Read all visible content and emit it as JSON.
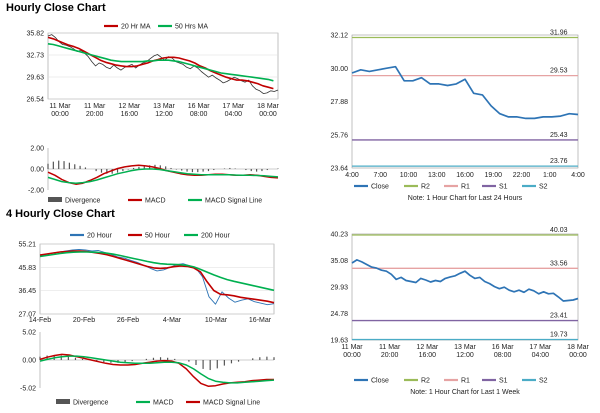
{
  "sections": {
    "hourly_title": "Hourly Close Chart",
    "four_hourly_title": "4 Hourly Close Chart"
  },
  "colors": {
    "close": "#2e74b5",
    "ma_short": "#c00000",
    "ma_mid": "#00b050",
    "ma_long": "#00b050",
    "divergence": "#555555",
    "macd": "#c00000",
    "signal": "#00b050",
    "r2": "#9bbb59",
    "r1": "#e6a3a3",
    "s1": "#8064a2",
    "s2": "#4bacc6",
    "four_close": "#2e74b5"
  },
  "chart_data": [
    {
      "id": "hourly-price",
      "type": "line",
      "legend": [
        "20 Hr MA",
        "50 Hrs MA"
      ],
      "ylim": [
        26.54,
        35.82
      ],
      "yticks": [
        "35.82",
        "32.73",
        "29.63",
        "26.54"
      ],
      "xticks": [
        [
          "11 Mar",
          "00:00"
        ],
        [
          "11 Mar",
          "20:00"
        ],
        [
          "12 Mar",
          "16:00"
        ],
        [
          "13 Mar",
          "12:00"
        ],
        [
          "16 Mar",
          "08:00"
        ],
        [
          "17 Mar",
          "04:00"
        ],
        [
          "18 Mar",
          "00:00"
        ]
      ],
      "series": [
        {
          "name": "",
          "values": [
            35.4,
            35.6,
            35.2,
            34.6,
            34.2,
            34.1,
            33.9,
            33.6,
            33.2,
            33.4,
            33.0,
            32.5,
            31.8,
            31.2,
            31.6,
            31.4,
            31.0,
            30.8,
            31.3,
            30.9,
            30.6,
            31.0,
            31.2,
            31.4,
            30.9,
            31.3,
            31.6,
            31.8,
            32.2,
            32.6,
            32.8,
            32.4,
            32.0,
            32.5,
            32.3,
            31.8,
            31.6,
            31.4,
            31.0,
            30.8,
            31.2,
            30.9,
            30.4,
            30.0,
            29.6,
            29.9,
            29.5,
            29.2,
            28.8,
            29.0,
            29.3,
            29.6,
            29.4,
            29.1,
            28.9,
            29.2,
            28.4,
            27.9,
            27.7,
            27.3,
            27.4,
            27.7,
            27.6,
            27.8
          ]
        },
        {
          "name": "20 Hr MA",
          "values": [
            35.2,
            35.0,
            34.7,
            34.4,
            34.1,
            33.9,
            33.6,
            33.2,
            32.8,
            32.4,
            32.0,
            31.7,
            31.5,
            31.3,
            31.2,
            31.1,
            31.1,
            31.2,
            31.4,
            31.6,
            31.9,
            32.1,
            32.3,
            32.4,
            32.4,
            32.3,
            32.1,
            31.9,
            31.6,
            31.2,
            30.9,
            30.5,
            30.2,
            29.9,
            29.6,
            29.4,
            29.2,
            29.2,
            29.1,
            28.9,
            28.7,
            28.4,
            28.2,
            28.0
          ]
        },
        {
          "name": "50 Hrs MA",
          "values": [
            34.3,
            34.2,
            34.0,
            33.8,
            33.6,
            33.4,
            33.2,
            33.0,
            32.8,
            32.6,
            32.4,
            32.2,
            32.0,
            31.9,
            31.8,
            31.8,
            31.8,
            31.8,
            31.8,
            31.9,
            31.9,
            32.0,
            32.0,
            32.0,
            31.9,
            31.8,
            31.6,
            31.4,
            31.2,
            31.0,
            30.8,
            30.6,
            30.4,
            30.2,
            30.1,
            30.0,
            29.9,
            29.8,
            29.7,
            29.6,
            29.5,
            29.4,
            29.3,
            29.1
          ]
        }
      ]
    },
    {
      "id": "hourly-macd",
      "type": "line",
      "legend": [
        "Divergence",
        "MACD",
        "MACD Signal Line"
      ],
      "ylim": [
        -2.0,
        2.0
      ],
      "yticks": [
        "2.00",
        "0.00",
        "-2.00"
      ],
      "series": [
        {
          "name": "Divergence",
          "values": [
            0.5,
            0.7,
            0.8,
            0.75,
            0.6,
            0.45,
            0.3,
            0.15,
            0.0,
            -0.2,
            -0.35,
            -0.45,
            -0.45,
            -0.35,
            -0.2,
            -0.05,
            0.1,
            0.2,
            0.3,
            0.35,
            0.4,
            0.35,
            0.25,
            0.1,
            -0.05,
            -0.15,
            -0.25,
            -0.3,
            -0.3,
            -0.25,
            -0.2,
            -0.1,
            0.0,
            0.05,
            0.1,
            0.05,
            0.0,
            -0.1,
            -0.2,
            -0.25,
            -0.2,
            -0.1,
            0.0,
            0.05
          ]
        },
        {
          "name": "MACD",
          "values": [
            -0.3,
            -0.6,
            -1.0,
            -1.3,
            -1.45,
            -1.35,
            -1.1,
            -0.8,
            -0.45,
            -0.2,
            0.05,
            0.2,
            0.3,
            0.35,
            0.3,
            0.2,
            0.05,
            -0.15,
            -0.3,
            -0.45,
            -0.55,
            -0.6,
            -0.6,
            -0.55,
            -0.5,
            -0.5,
            -0.55,
            -0.6,
            -0.6,
            -0.55,
            -0.6,
            -0.7,
            -0.8,
            -0.85
          ]
        },
        {
          "name": "MACD Signal Line",
          "values": [
            -0.8,
            -1.0,
            -1.2,
            -1.3,
            -1.35,
            -1.3,
            -1.2,
            -1.05,
            -0.85,
            -0.65,
            -0.45,
            -0.3,
            -0.15,
            -0.05,
            0.0,
            0.0,
            -0.05,
            -0.15,
            -0.25,
            -0.35,
            -0.45,
            -0.5,
            -0.55,
            -0.55,
            -0.55,
            -0.55,
            -0.55,
            -0.58,
            -0.6,
            -0.6,
            -0.62,
            -0.65,
            -0.7,
            -0.75
          ]
        }
      ]
    },
    {
      "id": "hourly-24h",
      "type": "line",
      "ylim": [
        23.64,
        32.12
      ],
      "yticks": [
        "32.12",
        "30.00",
        "27.88",
        "25.76",
        "23.64"
      ],
      "xticks": [
        "4:00",
        "7:00",
        "10:00",
        "13:00",
        "16:00",
        "19:00",
        "22:00",
        "1:00",
        "4:00"
      ],
      "levels": [
        {
          "name": "R2",
          "value": 31.96,
          "label": "31.96"
        },
        {
          "name": "R1",
          "value": 29.53,
          "label": "29.53"
        },
        {
          "name": "S1",
          "value": 25.43,
          "label": "25.43"
        },
        {
          "name": "S2",
          "value": 23.76,
          "label": "23.76"
        }
      ],
      "series": [
        {
          "name": "Close",
          "values": [
            29.7,
            29.9,
            29.8,
            29.9,
            30.0,
            30.1,
            29.2,
            29.2,
            29.4,
            29.0,
            29.0,
            28.9,
            29.0,
            29.3,
            28.4,
            28.3,
            27.6,
            27.1,
            26.9,
            26.9,
            26.8,
            26.8,
            26.9,
            26.9,
            26.95,
            27.1,
            27.05
          ]
        }
      ],
      "legend": [
        "Close",
        "R2",
        "R1",
        "S1",
        "S2"
      ],
      "note": "Note: 1 Hour Chart for Last 24 Hours"
    },
    {
      "id": "four-hourly-price",
      "type": "line",
      "legend": [
        "20 Hour",
        "50 Hour",
        "200 Hour"
      ],
      "ylim": [
        27.07,
        55.21
      ],
      "yticks": [
        "55.21",
        "45.83",
        "36.45",
        "27.07"
      ],
      "xticks": [
        "14-Feb",
        "20-Feb",
        "26-Feb",
        "4-Mar",
        "10-Mar",
        "16-Mar"
      ],
      "series": [
        {
          "name": "20 Hour",
          "values": [
            50.5,
            51.0,
            51.6,
            52.0,
            52.4,
            52.8,
            53.0,
            52.8,
            52.4,
            52.6,
            51.8,
            50.9,
            50.0,
            49.5,
            48.6,
            47.8,
            46.6,
            45.4,
            44.4,
            44.8,
            45.8,
            46.9,
            47.3,
            46.5,
            45.4,
            42.0,
            34.0,
            31.0,
            36.0,
            33.5,
            31.8,
            32.6,
            33.2,
            32.0,
            31.4,
            30.8,
            31.2
          ]
        },
        {
          "name": "50 Hour",
          "values": [
            50.8,
            51.2,
            51.6,
            52.0,
            52.2,
            52.4,
            52.4,
            52.2,
            51.8,
            51.4,
            50.9,
            50.2,
            49.4,
            48.6,
            47.8,
            47.0,
            46.2,
            45.6,
            45.4,
            45.6,
            46.1,
            46.4,
            46.2,
            45.6,
            44.0,
            40.0,
            36.5,
            35.0,
            34.8,
            34.4,
            33.8,
            33.4,
            33.0,
            32.6,
            32.2,
            31.6
          ]
        },
        {
          "name": "200 Hour",
          "values": [
            50.2,
            50.6,
            51.0,
            51.4,
            51.7,
            51.9,
            52.0,
            52.0,
            51.9,
            51.8,
            51.5,
            51.1,
            50.6,
            50.0,
            49.4,
            48.8,
            48.2,
            47.7,
            47.3,
            47.1,
            47.0,
            46.9,
            46.6,
            46.0,
            45.0,
            43.9,
            42.8,
            41.8,
            40.9,
            40.2,
            39.6,
            39.0,
            38.4,
            37.8,
            37.2,
            36.6
          ]
        }
      ]
    },
    {
      "id": "four-hourly-macd",
      "type": "line",
      "legend": [
        "Divergence",
        "MACD",
        "MACD Signal Line"
      ],
      "ylim": [
        -5.02,
        5.02
      ],
      "yticks": [
        "5.02",
        "0.00",
        "-5.02"
      ],
      "series": [
        {
          "name": "Divergence",
          "values": [
            0.6,
            0.8,
            0.9,
            0.8,
            0.6,
            0.4,
            0.2,
            0.0,
            -0.2,
            -0.4,
            -0.5,
            -0.5,
            -0.4,
            -0.2,
            0.0,
            0.2,
            0.4,
            0.5,
            0.4,
            0.2,
            0.0,
            -0.3,
            -0.9,
            -1.6,
            -1.8,
            -1.5,
            -1.0,
            -0.6,
            -0.3,
            0.0,
            0.3,
            0.5,
            0.6,
            0.5
          ]
        },
        {
          "name": "MACD",
          "values": [
            0.1,
            0.5,
            0.8,
            1.0,
            0.9,
            0.6,
            0.3,
            0.0,
            -0.3,
            -0.6,
            -0.8,
            -0.9,
            -0.9,
            -0.8,
            -0.6,
            -0.4,
            -0.2,
            -0.1,
            -0.2,
            -0.6,
            -1.6,
            -3.0,
            -4.2,
            -4.7,
            -4.6,
            -4.3,
            -4.1,
            -4.0,
            -3.9,
            -3.7,
            -3.6,
            -3.5,
            -3.5
          ]
        },
        {
          "name": "MACD Signal Line",
          "values": [
            -0.2,
            0.1,
            0.4,
            0.6,
            0.7,
            0.7,
            0.6,
            0.4,
            0.2,
            0.0,
            -0.2,
            -0.4,
            -0.5,
            -0.6,
            -0.6,
            -0.6,
            -0.5,
            -0.4,
            -0.4,
            -0.5,
            -0.9,
            -1.6,
            -2.5,
            -3.3,
            -3.8,
            -4.0,
            -4.1,
            -4.1,
            -4.0,
            -3.9,
            -3.8,
            -3.7,
            -3.6
          ]
        }
      ]
    },
    {
      "id": "hourly-1w",
      "type": "line",
      "ylim": [
        19.63,
        40.23
      ],
      "yticks": [
        "40.23",
        "35.08",
        "29.93",
        "24.78",
        "19.63"
      ],
      "xticks": [
        [
          "11 Mar",
          "00:00"
        ],
        [
          "11 Mar",
          "20:00"
        ],
        [
          "12 Mar",
          "16:00"
        ],
        [
          "13 Mar",
          "12:00"
        ],
        [
          "16 Mar",
          "08:00"
        ],
        [
          "17 Mar",
          "04:00"
        ],
        [
          "18 Mar",
          "00:00"
        ]
      ],
      "levels": [
        {
          "name": "R2",
          "value": 40.03,
          "label": "40.03"
        },
        {
          "name": "R1",
          "value": 33.56,
          "label": "33.56"
        },
        {
          "name": "S1",
          "value": 23.41,
          "label": "23.41"
        },
        {
          "name": "S2",
          "value": 19.73,
          "label": "19.73"
        }
      ],
      "series": [
        {
          "name": "Close",
          "values": [
            34.6,
            35.2,
            34.8,
            34.3,
            33.8,
            33.6,
            33.2,
            33.0,
            32.4,
            31.4,
            31.8,
            31.2,
            31.0,
            30.8,
            31.6,
            31.3,
            30.9,
            31.2,
            31.0,
            31.6,
            31.9,
            32.1,
            32.6,
            33.0,
            32.2,
            31.6,
            31.8,
            31.0,
            30.6,
            30.0,
            29.6,
            29.9,
            29.3,
            29.0,
            29.3,
            28.9,
            29.5,
            29.2,
            28.6,
            29.0,
            28.6,
            28.7,
            28.0,
            27.2,
            27.3,
            27.4,
            27.7
          ]
        }
      ],
      "legend": [
        "Close",
        "R2",
        "R1",
        "S1",
        "S2"
      ],
      "note": "Note: 1 Hour Chart for Last 1 Week"
    }
  ]
}
